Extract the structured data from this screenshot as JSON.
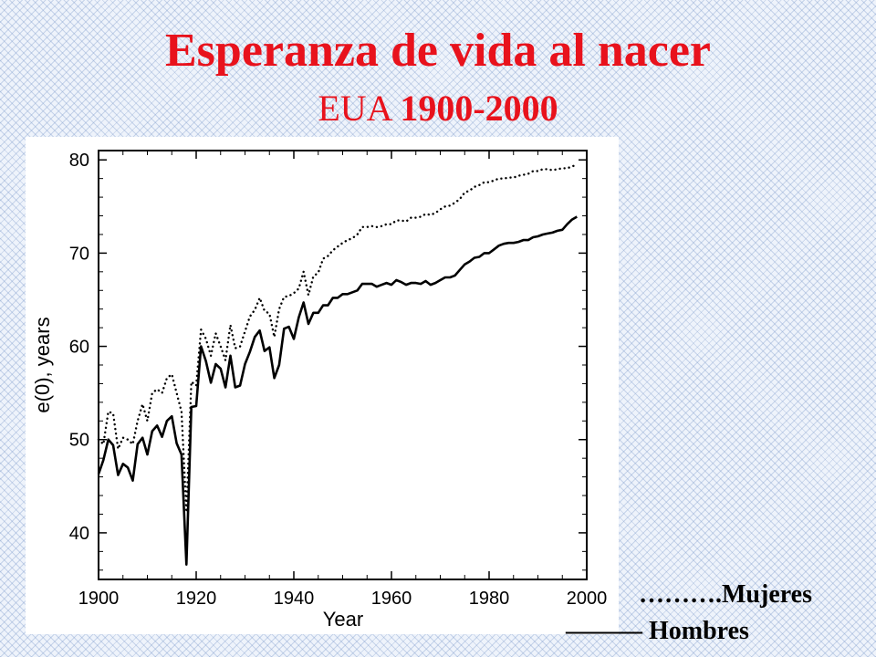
{
  "title": "Esperanza de vida al nacer",
  "subtitle_prefix": "EUA",
  "subtitle_years": "1900-2000",
  "legend": {
    "mujeres": "……….Mujeres",
    "hombres": "——— Hombres"
  },
  "chart_data": {
    "type": "line",
    "xlabel": "Year",
    "ylabel": "e(0), years",
    "xlim": [
      1900,
      2000
    ],
    "ylim": [
      35,
      81
    ],
    "x_ticks": [
      1900,
      1920,
      1940,
      1960,
      1980,
      2000
    ],
    "y_ticks": [
      40,
      50,
      60,
      70,
      80
    ],
    "grid": false,
    "x": [
      1900,
      1901,
      1902,
      1903,
      1904,
      1905,
      1906,
      1907,
      1908,
      1909,
      1910,
      1911,
      1912,
      1913,
      1914,
      1915,
      1916,
      1917,
      1918,
      1919,
      1920,
      1921,
      1922,
      1923,
      1924,
      1925,
      1926,
      1927,
      1928,
      1929,
      1930,
      1931,
      1932,
      1933,
      1934,
      1935,
      1936,
      1937,
      1938,
      1939,
      1940,
      1941,
      1942,
      1943,
      1944,
      1945,
      1946,
      1947,
      1948,
      1949,
      1950,
      1951,
      1952,
      1953,
      1954,
      1955,
      1956,
      1957,
      1958,
      1959,
      1960,
      1961,
      1962,
      1963,
      1964,
      1965,
      1966,
      1967,
      1968,
      1969,
      1970,
      1971,
      1972,
      1973,
      1974,
      1975,
      1976,
      1977,
      1978,
      1979,
      1980,
      1981,
      1982,
      1983,
      1984,
      1985,
      1986,
      1987,
      1988,
      1989,
      1990,
      1991,
      1992,
      1993,
      1994,
      1995,
      1996,
      1997,
      1998
    ],
    "series": [
      {
        "name": "Mujeres",
        "style": "dotted",
        "color": "#000000",
        "values": [
          50.0,
          49.5,
          53.0,
          52.8,
          49.0,
          50.2,
          50.0,
          49.5,
          52.0,
          53.8,
          52.0,
          55.0,
          55.4,
          55.0,
          56.6,
          57.0,
          55.0,
          53.0,
          42.2,
          56.2,
          55.8,
          61.8,
          60.8,
          59.0,
          61.4,
          60.0,
          58.5,
          62.3,
          59.8,
          60.0,
          61.6,
          63.2,
          63.9,
          65.2,
          63.8,
          63.5,
          61.0,
          64.0,
          65.3,
          65.4,
          65.7,
          66.2,
          68.0,
          65.5,
          67.5,
          67.9,
          69.4,
          69.7,
          70.3,
          70.7,
          71.1,
          71.4,
          71.6,
          72.0,
          72.8,
          72.8,
          72.9,
          72.8,
          72.9,
          73.1,
          73.1,
          73.5,
          73.5,
          73.4,
          73.8,
          73.8,
          73.9,
          74.2,
          74.1,
          74.3,
          74.7,
          75.0,
          75.1,
          75.4,
          75.8,
          76.5,
          76.7,
          77.1,
          77.3,
          77.6,
          77.6,
          77.8,
          78.0,
          78.0,
          78.1,
          78.1,
          78.3,
          78.4,
          78.5,
          78.8,
          78.8,
          79.0,
          79.0,
          78.9,
          79.0,
          79.1,
          79.1,
          79.3,
          79.5
        ]
      },
      {
        "name": "Hombres",
        "style": "solid",
        "color": "#000000",
        "values": [
          46.3,
          47.8,
          50.0,
          49.4,
          46.2,
          47.4,
          47.0,
          45.6,
          49.5,
          50.2,
          48.4,
          50.9,
          51.5,
          50.3,
          52.0,
          52.5,
          49.6,
          48.4,
          36.6,
          53.5,
          53.6,
          60.0,
          58.4,
          56.1,
          58.1,
          57.6,
          55.6,
          59.0,
          55.6,
          55.8,
          58.1,
          59.4,
          61.0,
          61.7,
          59.5,
          59.9,
          56.6,
          58.0,
          61.9,
          62.1,
          60.8,
          63.1,
          64.7,
          62.4,
          63.6,
          63.6,
          64.4,
          64.4,
          65.2,
          65.2,
          65.6,
          65.6,
          65.8,
          66.0,
          66.7,
          66.7,
          66.7,
          66.4,
          66.6,
          66.8,
          66.6,
          67.1,
          66.9,
          66.6,
          66.8,
          66.8,
          66.7,
          67.0,
          66.6,
          66.8,
          67.1,
          67.4,
          67.4,
          67.6,
          68.2,
          68.8,
          69.1,
          69.5,
          69.6,
          70.0,
          70.0,
          70.4,
          70.8,
          71.0,
          71.1,
          71.1,
          71.2,
          71.4,
          71.4,
          71.7,
          71.8,
          72.0,
          72.1,
          72.2,
          72.4,
          72.5,
          73.1,
          73.6,
          73.9
        ]
      }
    ]
  }
}
